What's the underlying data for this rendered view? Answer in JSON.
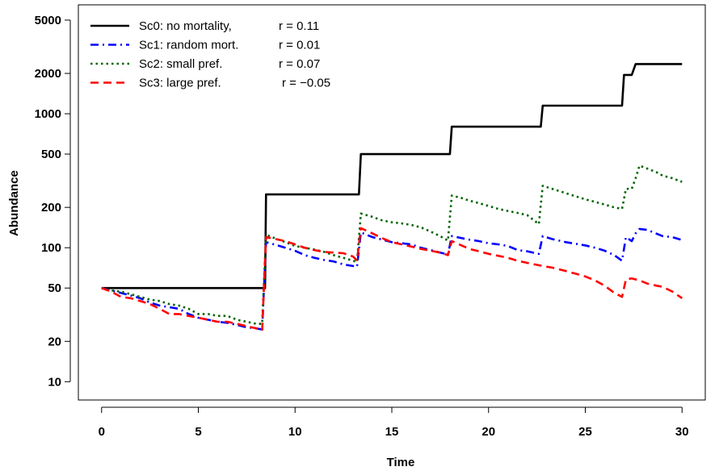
{
  "chart_data": {
    "type": "line",
    "title": "",
    "xlabel": "Time",
    "ylabel": "Abundance",
    "x_scale": "linear",
    "y_scale": "log",
    "xlim": [
      -1.2,
      31.2
    ],
    "ylim": [
      7.3,
      6500
    ],
    "xticks": [
      0,
      5,
      10,
      15,
      20,
      25,
      30
    ],
    "xtick_labels": [
      "0",
      "5",
      "10",
      "15",
      "20",
      "25",
      "30"
    ],
    "yticks": [
      10,
      20,
      50,
      100,
      200,
      500,
      1000,
      2000,
      5000
    ],
    "ytick_labels": [
      "10",
      "20",
      "50",
      "100",
      "200",
      "500",
      "1000",
      "2000",
      "5000"
    ],
    "grid": false,
    "legend": {
      "position": "top-left",
      "entries": [
        {
          "label": "Sc0: no mortality,",
          "r_text": "r = 0.11"
        },
        {
          "label": "Sc1: random mort.",
          "r_text": "r = 0.01"
        },
        {
          "label": "Sc2: small pref.",
          "r_text": "r = 0.07"
        },
        {
          "label": "Sc3: large pref.",
          "r_text": "r = −0.05"
        }
      ]
    },
    "series": [
      {
        "name": "Sc0: no mortality,",
        "color": "#000000",
        "dash": "solid",
        "points": [
          [
            0,
            50
          ],
          [
            8.45,
            50
          ],
          [
            8.5,
            250
          ],
          [
            13.3,
            250
          ],
          [
            13.4,
            500
          ],
          [
            18.0,
            500
          ],
          [
            18.1,
            800
          ],
          [
            22.7,
            800
          ],
          [
            22.8,
            1150
          ],
          [
            26.9,
            1150
          ],
          [
            27.0,
            1950
          ],
          [
            27.4,
            1950
          ],
          [
            27.6,
            2350
          ],
          [
            30,
            2350
          ]
        ]
      },
      {
        "name": "Sc1: random mort.",
        "color": "#0000ff",
        "dash": "dotdash",
        "points": [
          [
            0,
            50
          ],
          [
            0.5,
            48
          ],
          [
            1,
            46
          ],
          [
            1.5,
            44
          ],
          [
            2,
            42
          ],
          [
            2.5,
            39
          ],
          [
            3,
            37
          ],
          [
            3.5,
            36
          ],
          [
            4,
            35
          ],
          [
            4.5,
            32
          ],
          [
            5,
            30
          ],
          [
            5.5,
            29
          ],
          [
            6,
            28
          ],
          [
            6.5,
            27.5
          ],
          [
            7,
            26.5
          ],
          [
            7.5,
            25.5
          ],
          [
            8,
            25
          ],
          [
            8.3,
            24.5
          ],
          [
            8.5,
            110
          ],
          [
            9,
            105
          ],
          [
            9.5,
            100
          ],
          [
            10,
            95
          ],
          [
            10.5,
            88
          ],
          [
            11,
            84
          ],
          [
            11.5,
            81
          ],
          [
            12,
            79
          ],
          [
            12.5,
            75
          ],
          [
            13,
            73
          ],
          [
            13.2,
            72
          ],
          [
            13.4,
            130
          ],
          [
            14,
            120
          ],
          [
            14.5,
            115
          ],
          [
            15,
            110
          ],
          [
            15.5,
            108
          ],
          [
            16,
            106
          ],
          [
            16.5,
            100
          ],
          [
            17,
            96
          ],
          [
            17.5,
            92
          ],
          [
            17.9,
            89
          ],
          [
            18.1,
            122
          ],
          [
            18.6,
            118
          ],
          [
            19,
            115
          ],
          [
            19.5,
            112
          ],
          [
            20,
            108
          ],
          [
            20.5,
            106
          ],
          [
            21,
            103
          ],
          [
            21.5,
            96
          ],
          [
            22,
            94
          ],
          [
            22.6,
            90
          ],
          [
            22.8,
            122
          ],
          [
            23.3,
            116
          ],
          [
            24,
            110
          ],
          [
            24.5,
            107
          ],
          [
            25,
            104
          ],
          [
            25.5,
            100
          ],
          [
            26,
            95
          ],
          [
            26.5,
            88
          ],
          [
            26.9,
            80
          ],
          [
            27.1,
            120
          ],
          [
            27.4,
            112
          ],
          [
            27.6,
            128
          ],
          [
            27.8,
            138
          ],
          [
            28.2,
            136
          ],
          [
            28.7,
            127
          ],
          [
            29,
            122
          ],
          [
            29.5,
            120
          ],
          [
            30,
            114
          ]
        ]
      },
      {
        "name": "Sc2: small pref.",
        "color": "#006400",
        "dash": "dotted",
        "points": [
          [
            0,
            50
          ],
          [
            0.5,
            48
          ],
          [
            1,
            47
          ],
          [
            1.5,
            45
          ],
          [
            2,
            43
          ],
          [
            2.5,
            41
          ],
          [
            3,
            40
          ],
          [
            3.5,
            38
          ],
          [
            4,
            37
          ],
          [
            4.5,
            35
          ],
          [
            5,
            32
          ],
          [
            5.5,
            32
          ],
          [
            6,
            31
          ],
          [
            6.5,
            31
          ],
          [
            7,
            29
          ],
          [
            7.5,
            28
          ],
          [
            8,
            27
          ],
          [
            8.3,
            27
          ],
          [
            8.5,
            125
          ],
          [
            9,
            117
          ],
          [
            9.5,
            110
          ],
          [
            10,
            103
          ],
          [
            10.5,
            100
          ],
          [
            11,
            97
          ],
          [
            11.5,
            93
          ],
          [
            12,
            88
          ],
          [
            12.5,
            84
          ],
          [
            13,
            80
          ],
          [
            13.2,
            78
          ],
          [
            13.4,
            180
          ],
          [
            14,
            170
          ],
          [
            14.5,
            160
          ],
          [
            15,
            155
          ],
          [
            15.5,
            152
          ],
          [
            16,
            148
          ],
          [
            16.5,
            142
          ],
          [
            17,
            132
          ],
          [
            17.5,
            122
          ],
          [
            17.9,
            113
          ],
          [
            18.1,
            245
          ],
          [
            18.6,
            235
          ],
          [
            19,
            225
          ],
          [
            19.5,
            215
          ],
          [
            20,
            205
          ],
          [
            20.5,
            195
          ],
          [
            21,
            188
          ],
          [
            21.5,
            182
          ],
          [
            22,
            175
          ],
          [
            22.6,
            150
          ],
          [
            22.8,
            290
          ],
          [
            23.3,
            275
          ],
          [
            24,
            255
          ],
          [
            24.5,
            242
          ],
          [
            25,
            230
          ],
          [
            25.5,
            220
          ],
          [
            26,
            210
          ],
          [
            26.5,
            200
          ],
          [
            26.9,
            195
          ],
          [
            27.1,
            275
          ],
          [
            27.4,
            275
          ],
          [
            27.6,
            330
          ],
          [
            27.8,
            410
          ],
          [
            28.2,
            390
          ],
          [
            28.7,
            365
          ],
          [
            29,
            345
          ],
          [
            29.5,
            330
          ],
          [
            30,
            310
          ]
        ]
      },
      {
        "name": "Sc3: large pref.",
        "color": "#ff0000",
        "dash": "dashed",
        "points": [
          [
            0,
            50
          ],
          [
            0.5,
            47
          ],
          [
            1,
            43
          ],
          [
            1.5,
            42
          ],
          [
            2,
            40
          ],
          [
            2.5,
            38
          ],
          [
            3,
            35
          ],
          [
            3.5,
            32
          ],
          [
            4,
            32
          ],
          [
            4.5,
            31
          ],
          [
            5,
            30
          ],
          [
            5.5,
            29
          ],
          [
            6,
            28
          ],
          [
            6.5,
            28
          ],
          [
            7,
            27
          ],
          [
            7.5,
            26
          ],
          [
            8,
            25
          ],
          [
            8.3,
            24
          ],
          [
            8.5,
            120
          ],
          [
            9,
            116
          ],
          [
            9.5,
            112
          ],
          [
            10,
            106
          ],
          [
            10.5,
            100
          ],
          [
            11,
            96
          ],
          [
            11.5,
            93
          ],
          [
            12,
            92
          ],
          [
            12.5,
            91
          ],
          [
            13,
            86
          ],
          [
            13.2,
            80
          ],
          [
            13.4,
            140
          ],
          [
            14,
            128
          ],
          [
            14.5,
            118
          ],
          [
            15,
            110
          ],
          [
            15.5,
            106
          ],
          [
            16,
            102
          ],
          [
            16.5,
            98
          ],
          [
            17,
            95
          ],
          [
            17.5,
            92
          ],
          [
            17.9,
            88
          ],
          [
            18.1,
            112
          ],
          [
            18.6,
            104
          ],
          [
            19,
            98
          ],
          [
            19.5,
            94
          ],
          [
            20,
            90
          ],
          [
            20.5,
            87
          ],
          [
            21,
            84
          ],
          [
            21.5,
            80
          ],
          [
            22,
            77
          ],
          [
            22.6,
            74
          ],
          [
            22.8,
            73
          ],
          [
            23.3,
            71
          ],
          [
            24,
            67
          ],
          [
            24.5,
            64
          ],
          [
            25,
            61
          ],
          [
            25.5,
            57
          ],
          [
            26,
            52
          ],
          [
            26.5,
            46
          ],
          [
            26.9,
            43
          ],
          [
            27.1,
            58
          ],
          [
            27.4,
            59
          ],
          [
            27.6,
            58
          ],
          [
            27.8,
            57
          ],
          [
            28.2,
            54
          ],
          [
            28.7,
            52
          ],
          [
            29,
            51
          ],
          [
            29.5,
            47
          ],
          [
            30,
            42
          ]
        ]
      }
    ]
  }
}
